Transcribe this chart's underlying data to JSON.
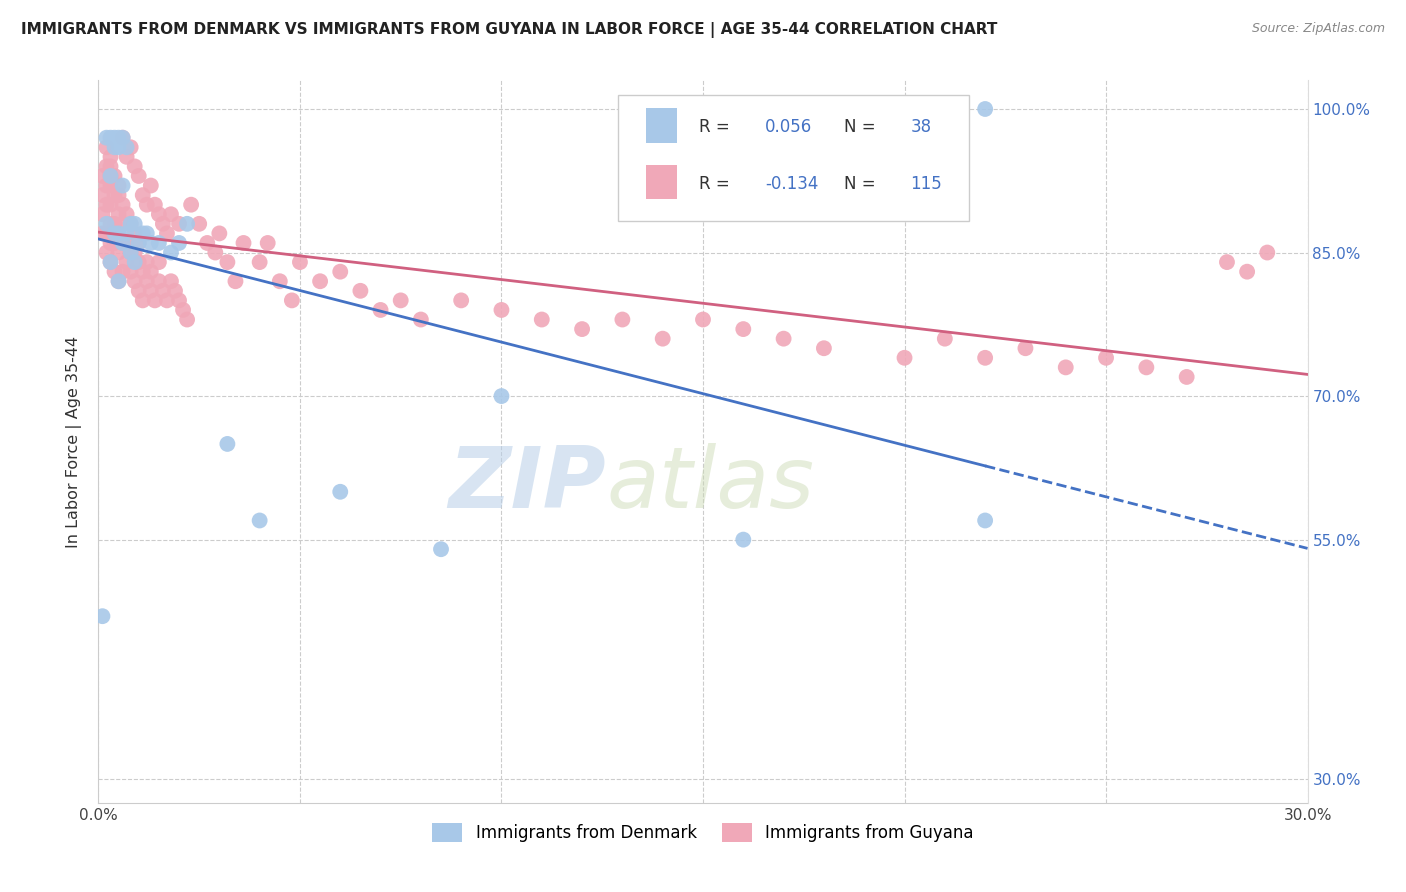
{
  "title": "IMMIGRANTS FROM DENMARK VS IMMIGRANTS FROM GUYANA IN LABOR FORCE | AGE 35-44 CORRELATION CHART",
  "source": "Source: ZipAtlas.com",
  "ylabel": "In Labor Force | Age 35-44",
  "x_min": 0.0,
  "x_max": 0.3,
  "y_min": 0.275,
  "y_max": 1.03,
  "yticks": [
    0.3,
    0.55,
    0.7,
    0.85,
    1.0
  ],
  "ytick_labels_right": [
    "30.0%",
    "55.0%",
    "70.0%",
    "85.0%",
    "100.0%"
  ],
  "xticks": [
    0.0,
    0.05,
    0.1,
    0.15,
    0.2,
    0.25,
    0.3
  ],
  "xtick_labels": [
    "0.0%",
    "",
    "",
    "",
    "",
    "",
    "30.0%"
  ],
  "color_denmark": "#a8c8e8",
  "color_guyana": "#f0a8b8",
  "color_denmark_line": "#4472C4",
  "color_guyana_line": "#d06080",
  "color_r_value": "#4472C4",
  "watermark_zip": "ZIP",
  "watermark_atlas": "atlas",
  "denmark_x": [
    0.001,
    0.002,
    0.002,
    0.003,
    0.003,
    0.003,
    0.004,
    0.004,
    0.004,
    0.005,
    0.005,
    0.005,
    0.005,
    0.006,
    0.006,
    0.006,
    0.007,
    0.007,
    0.008,
    0.008,
    0.009,
    0.009,
    0.01,
    0.011,
    0.012,
    0.013,
    0.015,
    0.018,
    0.02,
    0.022,
    0.032,
    0.04,
    0.06,
    0.085,
    0.1,
    0.16,
    0.22,
    0.22
  ],
  "denmark_y": [
    0.47,
    0.88,
    0.97,
    0.84,
    0.93,
    0.97,
    0.87,
    0.96,
    0.97,
    0.82,
    0.87,
    0.96,
    0.97,
    0.86,
    0.92,
    0.97,
    0.87,
    0.96,
    0.85,
    0.88,
    0.84,
    0.88,
    0.86,
    0.87,
    0.87,
    0.86,
    0.86,
    0.85,
    0.86,
    0.88,
    0.65,
    0.57,
    0.6,
    0.54,
    0.7,
    0.55,
    0.57,
    1.0
  ],
  "guyana_x": [
    0.001,
    0.001,
    0.001,
    0.001,
    0.002,
    0.002,
    0.002,
    0.002,
    0.002,
    0.003,
    0.003,
    0.003,
    0.003,
    0.003,
    0.003,
    0.003,
    0.004,
    0.004,
    0.004,
    0.004,
    0.005,
    0.005,
    0.005,
    0.005,
    0.005,
    0.006,
    0.006,
    0.006,
    0.006,
    0.007,
    0.007,
    0.007,
    0.008,
    0.008,
    0.008,
    0.009,
    0.009,
    0.009,
    0.01,
    0.01,
    0.01,
    0.011,
    0.011,
    0.012,
    0.012,
    0.013,
    0.013,
    0.014,
    0.015,
    0.015,
    0.016,
    0.017,
    0.018,
    0.019,
    0.02,
    0.021,
    0.022,
    0.023,
    0.025,
    0.027,
    0.029,
    0.03,
    0.032,
    0.034,
    0.036,
    0.04,
    0.042,
    0.045,
    0.048,
    0.05,
    0.055,
    0.06,
    0.065,
    0.07,
    0.075,
    0.08,
    0.09,
    0.1,
    0.11,
    0.12,
    0.13,
    0.14,
    0.15,
    0.16,
    0.17,
    0.18,
    0.2,
    0.21,
    0.22,
    0.23,
    0.24,
    0.25,
    0.26,
    0.27,
    0.28,
    0.285,
    0.29,
    0.002,
    0.003,
    0.004,
    0.005,
    0.006,
    0.007,
    0.008,
    0.009,
    0.01,
    0.011,
    0.012,
    0.013,
    0.014,
    0.015,
    0.016,
    0.017,
    0.018,
    0.02,
    0.022,
    0.025
  ],
  "guyana_y": [
    0.87,
    0.89,
    0.91,
    0.93,
    0.85,
    0.87,
    0.9,
    0.92,
    0.94,
    0.84,
    0.86,
    0.88,
    0.9,
    0.92,
    0.93,
    0.95,
    0.83,
    0.86,
    0.88,
    0.91,
    0.82,
    0.85,
    0.87,
    0.89,
    0.92,
    0.83,
    0.86,
    0.88,
    0.9,
    0.84,
    0.86,
    0.89,
    0.83,
    0.85,
    0.88,
    0.82,
    0.85,
    0.87,
    0.81,
    0.84,
    0.86,
    0.8,
    0.83,
    0.82,
    0.84,
    0.81,
    0.83,
    0.8,
    0.82,
    0.84,
    0.81,
    0.8,
    0.82,
    0.81,
    0.8,
    0.79,
    0.78,
    0.9,
    0.88,
    0.86,
    0.85,
    0.87,
    0.84,
    0.82,
    0.86,
    0.84,
    0.86,
    0.82,
    0.8,
    0.84,
    0.82,
    0.83,
    0.81,
    0.79,
    0.8,
    0.78,
    0.8,
    0.79,
    0.78,
    0.77,
    0.78,
    0.76,
    0.78,
    0.77,
    0.76,
    0.75,
    0.74,
    0.76,
    0.74,
    0.75,
    0.73,
    0.74,
    0.73,
    0.72,
    0.84,
    0.83,
    0.85,
    0.96,
    0.94,
    0.93,
    0.91,
    0.97,
    0.95,
    0.96,
    0.94,
    0.93,
    0.91,
    0.9,
    0.92,
    0.9,
    0.89,
    0.88,
    0.87,
    0.89,
    0.88,
    0.86,
    0.87
  ]
}
